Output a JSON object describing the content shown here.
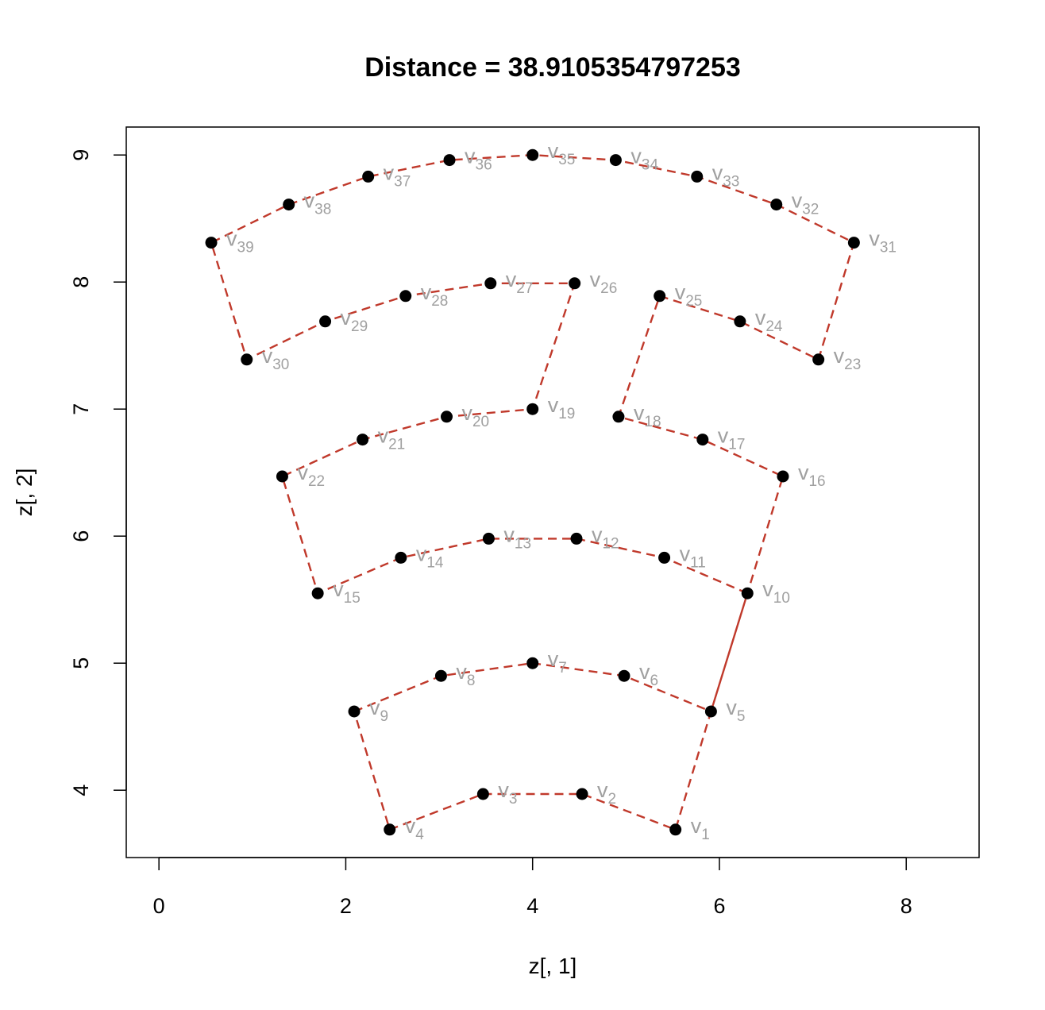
{
  "chart_data": {
    "type": "scatter",
    "title": "Distance = 38.9105354797253",
    "xlabel": "z[, 1]",
    "ylabel": "z[, 2]",
    "xlim": [
      -0.35,
      8.78
    ],
    "ylim": [
      3.47,
      9.22
    ],
    "xticks": [
      0,
      2,
      4,
      6,
      8
    ],
    "yticks": [
      4,
      5,
      6,
      7,
      8,
      9
    ],
    "grid": false,
    "point_label_prefix": "v",
    "points": [
      {
        "id": 1,
        "x": 5.53,
        "y": 3.69
      },
      {
        "id": 2,
        "x": 4.53,
        "y": 3.97
      },
      {
        "id": 3,
        "x": 3.47,
        "y": 3.97
      },
      {
        "id": 4,
        "x": 2.47,
        "y": 3.69
      },
      {
        "id": 5,
        "x": 5.91,
        "y": 4.62
      },
      {
        "id": 6,
        "x": 4.98,
        "y": 4.9
      },
      {
        "id": 7,
        "x": 4.0,
        "y": 5.0
      },
      {
        "id": 8,
        "x": 3.02,
        "y": 4.9
      },
      {
        "id": 9,
        "x": 2.09,
        "y": 4.62
      },
      {
        "id": 10,
        "x": 6.3,
        "y": 5.55
      },
      {
        "id": 11,
        "x": 5.41,
        "y": 5.83
      },
      {
        "id": 12,
        "x": 4.47,
        "y": 5.98
      },
      {
        "id": 13,
        "x": 3.53,
        "y": 5.98
      },
      {
        "id": 14,
        "x": 2.59,
        "y": 5.83
      },
      {
        "id": 15,
        "x": 1.7,
        "y": 5.55
      },
      {
        "id": 16,
        "x": 6.68,
        "y": 6.47
      },
      {
        "id": 17,
        "x": 5.82,
        "y": 6.76
      },
      {
        "id": 18,
        "x": 4.92,
        "y": 6.94
      },
      {
        "id": 19,
        "x": 4.0,
        "y": 7.0
      },
      {
        "id": 20,
        "x": 3.08,
        "y": 6.94
      },
      {
        "id": 21,
        "x": 2.18,
        "y": 6.76
      },
      {
        "id": 22,
        "x": 1.32,
        "y": 6.47
      },
      {
        "id": 23,
        "x": 7.06,
        "y": 7.39
      },
      {
        "id": 24,
        "x": 6.22,
        "y": 7.69
      },
      {
        "id": 25,
        "x": 5.36,
        "y": 7.89
      },
      {
        "id": 26,
        "x": 4.45,
        "y": 7.99
      },
      {
        "id": 27,
        "x": 3.55,
        "y": 7.99
      },
      {
        "id": 28,
        "x": 2.64,
        "y": 7.89
      },
      {
        "id": 29,
        "x": 1.78,
        "y": 7.69
      },
      {
        "id": 30,
        "x": 0.94,
        "y": 7.39
      },
      {
        "id": 31,
        "x": 7.44,
        "y": 8.31
      },
      {
        "id": 32,
        "x": 6.61,
        "y": 8.61
      },
      {
        "id": 33,
        "x": 5.76,
        "y": 8.83
      },
      {
        "id": 34,
        "x": 4.89,
        "y": 8.96
      },
      {
        "id": 35,
        "x": 4.0,
        "y": 9.0
      },
      {
        "id": 36,
        "x": 3.11,
        "y": 8.96
      },
      {
        "id": 37,
        "x": 2.24,
        "y": 8.83
      },
      {
        "id": 38,
        "x": 1.39,
        "y": 8.61
      },
      {
        "id": 39,
        "x": 0.56,
        "y": 8.31
      }
    ],
    "dashed_paths": [
      [
        9,
        8,
        7,
        6,
        5,
        1,
        2,
        3,
        4,
        9
      ],
      [
        10,
        11,
        12,
        13,
        14,
        15,
        22,
        21,
        20,
        19,
        26,
        27,
        28,
        29,
        30,
        39,
        38,
        37,
        36,
        35,
        34,
        33,
        32,
        31,
        23,
        24,
        25,
        18,
        17,
        16,
        10
      ]
    ],
    "solid_segments": [
      [
        5,
        10
      ]
    ],
    "colors": {
      "path": "#c0392b",
      "point": "#000000",
      "label": "#a0a0a0"
    }
  }
}
